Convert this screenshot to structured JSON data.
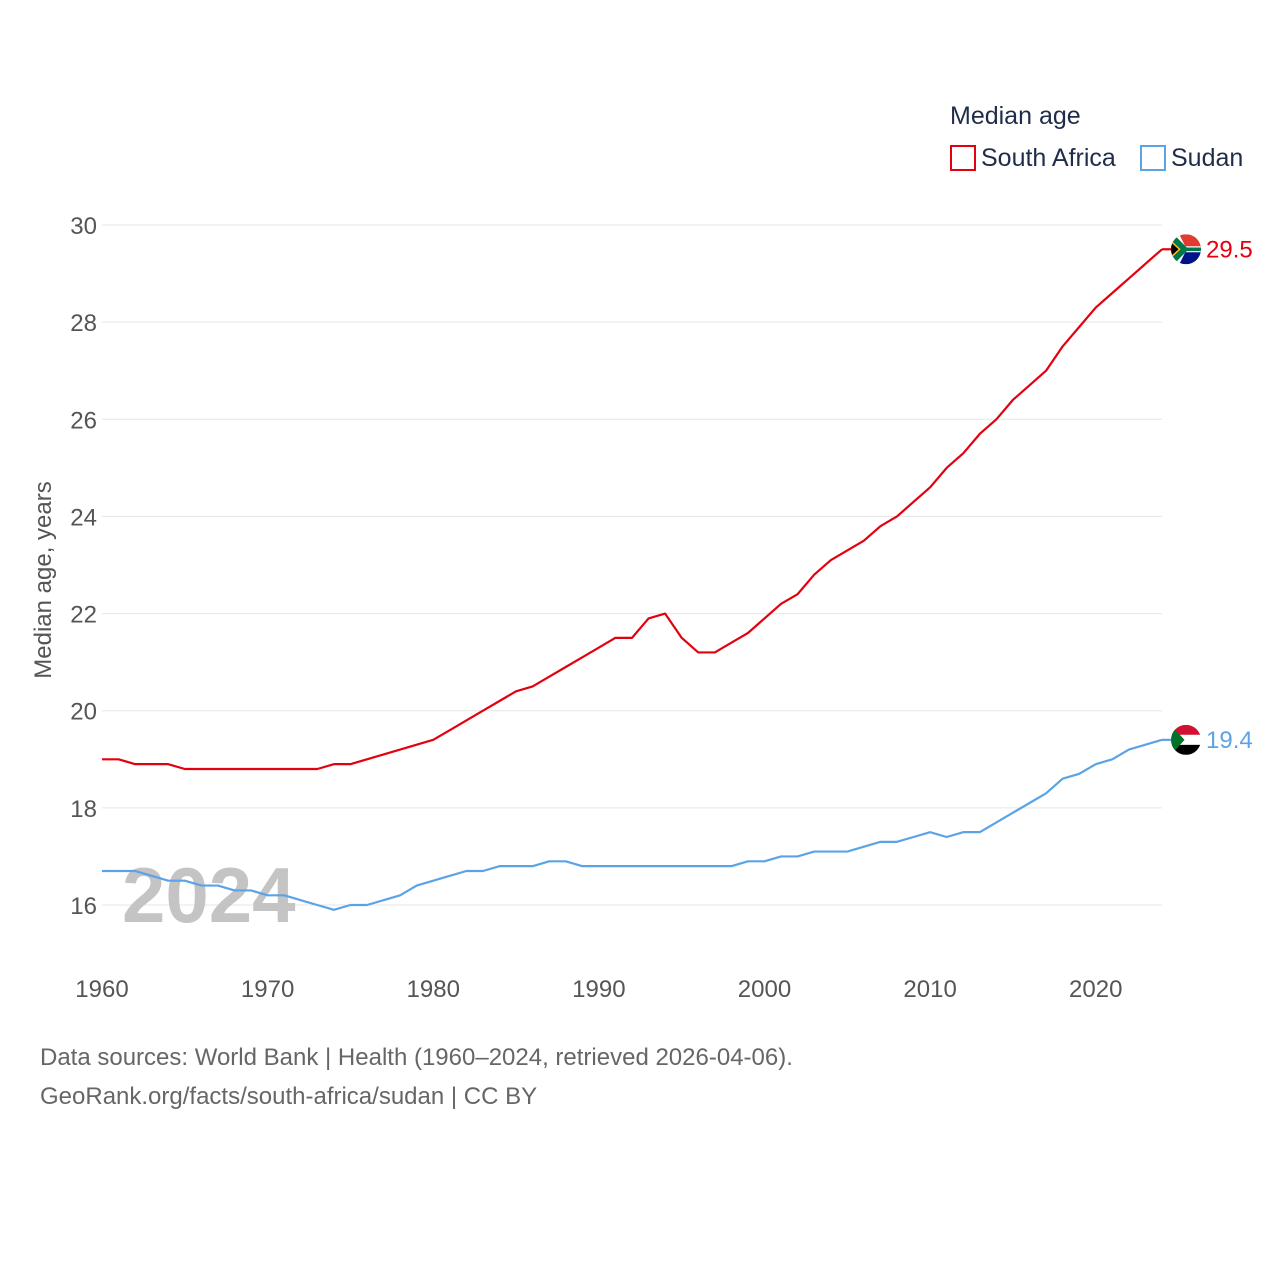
{
  "chart_data": {
    "type": "line",
    "legend_title": "Median age",
    "ylabel": "Median age, years",
    "xlabel": "",
    "ylim": [
      15,
      30.4
    ],
    "xlim": [
      1960,
      2024
    ],
    "yticks": [
      16,
      18,
      20,
      22,
      24,
      26,
      28,
      30
    ],
    "xticks": [
      1960,
      1970,
      1980,
      1990,
      2000,
      2010,
      2020
    ],
    "watermark_year": "2024",
    "x": [
      1960,
      1961,
      1962,
      1963,
      1964,
      1965,
      1966,
      1967,
      1968,
      1969,
      1970,
      1971,
      1972,
      1973,
      1974,
      1975,
      1976,
      1977,
      1978,
      1979,
      1980,
      1981,
      1982,
      1983,
      1984,
      1985,
      1986,
      1987,
      1988,
      1989,
      1990,
      1991,
      1992,
      1993,
      1994,
      1995,
      1996,
      1997,
      1998,
      1999,
      2000,
      2001,
      2002,
      2003,
      2004,
      2005,
      2006,
      2007,
      2008,
      2009,
      2010,
      2011,
      2012,
      2013,
      2014,
      2015,
      2016,
      2017,
      2018,
      2019,
      2020,
      2021,
      2022,
      2023,
      2024
    ],
    "series": [
      {
        "name": "South Africa",
        "color": "#e3000f",
        "end_label": "29.5",
        "flag": "south-africa",
        "values": [
          19.0,
          19.0,
          18.9,
          18.9,
          18.9,
          18.8,
          18.8,
          18.8,
          18.8,
          18.8,
          18.8,
          18.8,
          18.8,
          18.8,
          18.9,
          18.9,
          19.0,
          19.1,
          19.2,
          19.3,
          19.4,
          19.6,
          19.8,
          20.0,
          20.2,
          20.4,
          20.5,
          20.7,
          20.9,
          21.1,
          21.3,
          21.5,
          21.5,
          21.9,
          22.0,
          21.5,
          21.2,
          21.2,
          21.4,
          21.6,
          21.9,
          22.2,
          22.4,
          22.8,
          23.1,
          23.3,
          23.5,
          23.8,
          24.0,
          24.3,
          24.6,
          25.0,
          25.3,
          25.7,
          26.0,
          26.4,
          26.7,
          27.0,
          27.5,
          27.9,
          28.3,
          28.6,
          28.9,
          29.2,
          29.5
        ]
      },
      {
        "name": "Sudan",
        "color": "#5ba3e6",
        "end_label": "19.4",
        "flag": "sudan",
        "values": [
          16.7,
          16.7,
          16.7,
          16.6,
          16.5,
          16.5,
          16.4,
          16.4,
          16.3,
          16.3,
          16.2,
          16.2,
          16.1,
          16.0,
          15.9,
          16.0,
          16.0,
          16.1,
          16.2,
          16.4,
          16.5,
          16.6,
          16.7,
          16.7,
          16.8,
          16.8,
          16.8,
          16.9,
          16.9,
          16.8,
          16.8,
          16.8,
          16.8,
          16.8,
          16.8,
          16.8,
          16.8,
          16.8,
          16.8,
          16.9,
          16.9,
          17.0,
          17.0,
          17.1,
          17.1,
          17.1,
          17.2,
          17.3,
          17.3,
          17.4,
          17.5,
          17.4,
          17.5,
          17.5,
          17.7,
          17.9,
          18.1,
          18.3,
          18.6,
          18.7,
          18.9,
          19.0,
          19.2,
          19.3,
          19.4
        ]
      }
    ]
  },
  "footer": {
    "line1": "Data sources: World Bank | Health (1960–2024, retrieved 2026-04-06).",
    "line2": "GeoRank.org/facts/south-africa/sudan | CC BY"
  }
}
